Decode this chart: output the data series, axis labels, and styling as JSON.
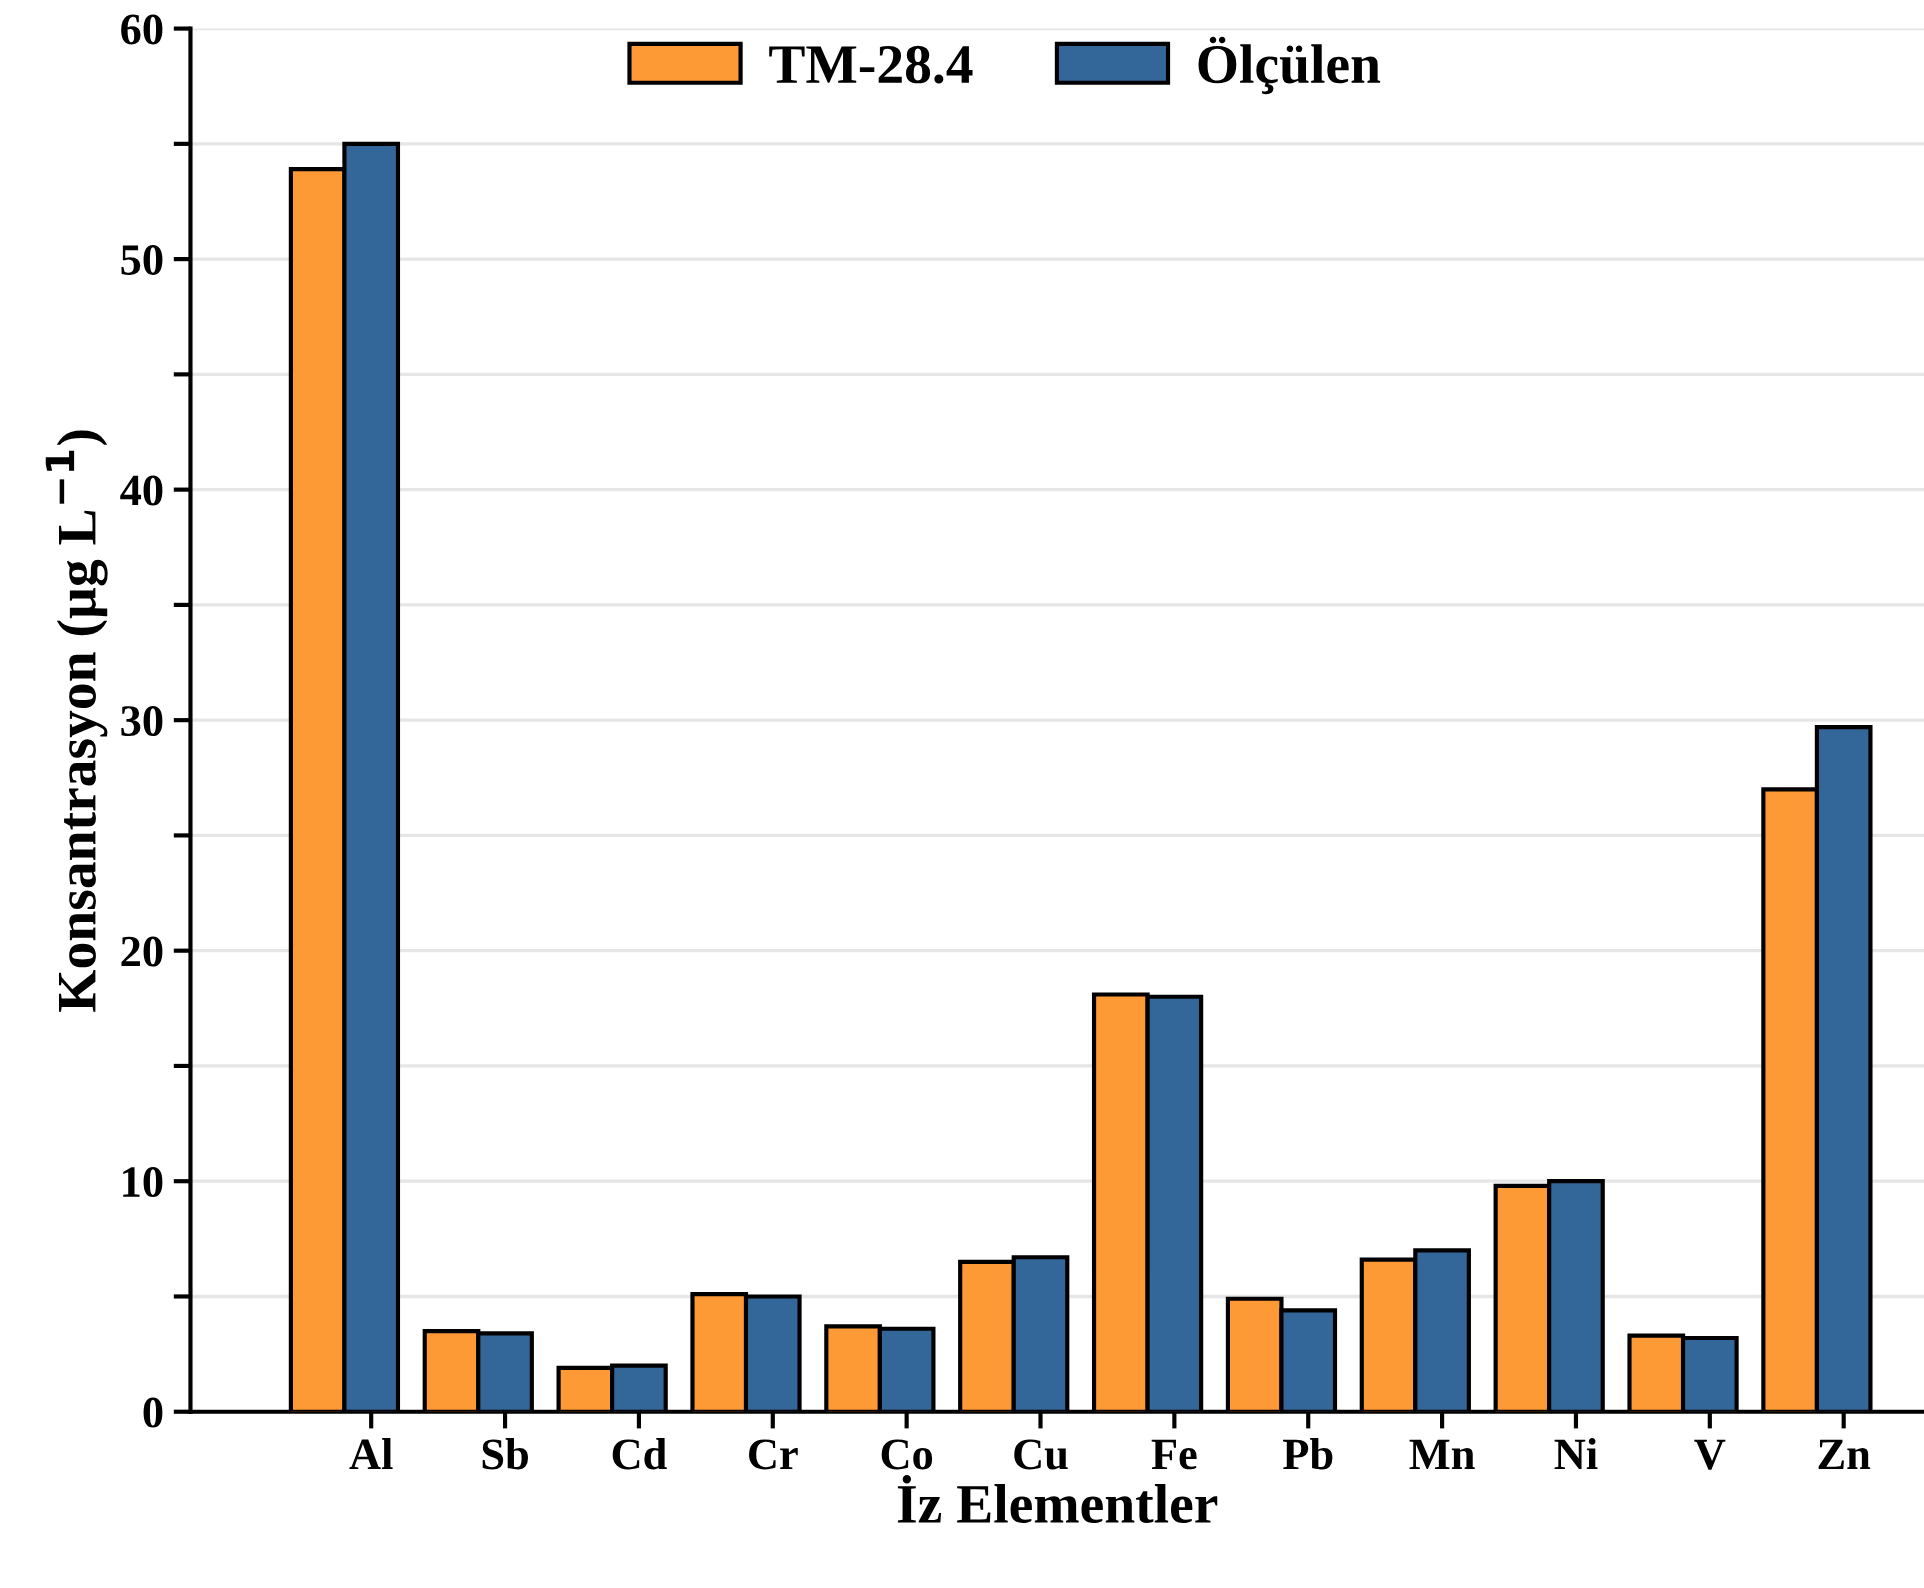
{
  "chart_data": {
    "type": "bar",
    "xlabel": "İz Elementler",
    "ylabel": "Konsantrasyon (µg L$^{−1}$)",
    "categories": [
      "Al",
      "Sb",
      "Cd",
      "Cr",
      "Co",
      "Cu",
      "Fe",
      "Pb",
      "Mn",
      "Ni",
      "V",
      "Zn"
    ],
    "series": [
      {
        "name": "TM-28.4",
        "color": "#fe9a35",
        "values": [
          53.9,
          3.5,
          1.9,
          5.1,
          3.7,
          6.5,
          18.1,
          4.9,
          6.6,
          9.8,
          3.3,
          27.0
        ]
      },
      {
        "name": "Ölçülen",
        "color": "#336699",
        "values": [
          55.0,
          3.4,
          2.0,
          5.0,
          3.6,
          6.7,
          18.0,
          4.4,
          7.0,
          10.0,
          3.2,
          29.7
        ]
      }
    ],
    "ylim": [
      0,
      60
    ],
    "yticks": [
      0,
      {
        "value": 5,
        "label": null
      },
      10,
      {
        "value": 15,
        "label": null
      },
      20,
      {
        "value": 25,
        "label": null
      },
      30,
      {
        "value": 35,
        "label": null
      },
      40,
      {
        "value": 45,
        "label": null
      },
      50,
      {
        "value": 55,
        "label": null
      },
      60
    ],
    "grid": "y",
    "legend": "top"
  }
}
